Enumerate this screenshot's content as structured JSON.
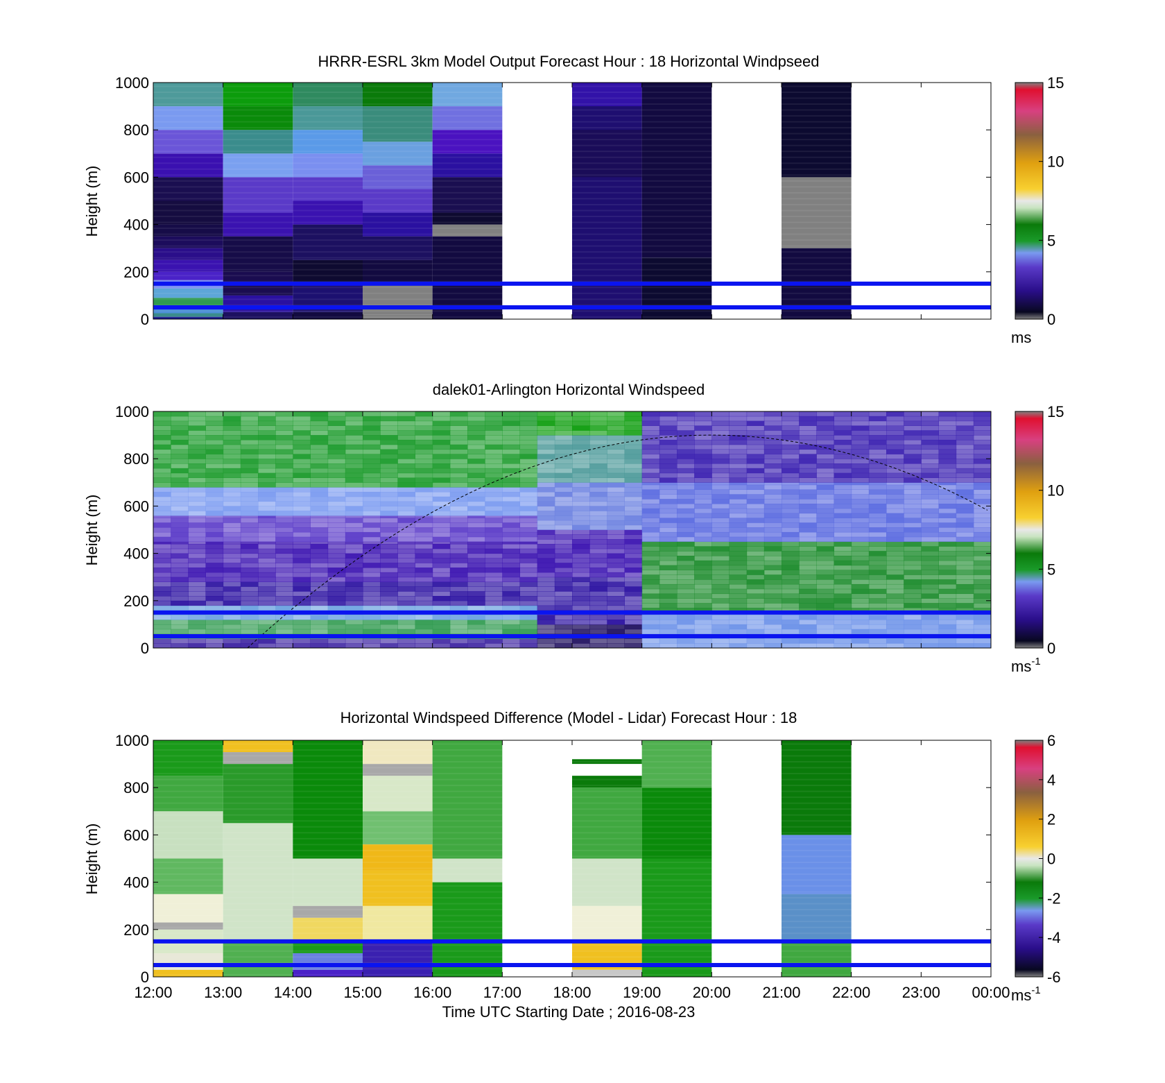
{
  "chart_data": [
    {
      "type": "heatmap",
      "title": "HRRR-ESRL 3km Model Output   Forecast Hour : 18 Horizontal Windpseed",
      "ylabel": "Height (m)",
      "ylim": [
        0,
        1000
      ],
      "yticks": [
        "0",
        "200",
        "400",
        "600",
        "800",
        "1000"
      ],
      "x_range_hours": [
        12,
        24
      ],
      "colorbar": {
        "range": [
          0,
          15
        ],
        "ticks": [
          "0",
          "5",
          "10",
          "15"
        ],
        "unit": "ms",
        "unit_exp": ""
      },
      "reference_lines_m": [
        50,
        150
      ],
      "columns": [
        {
          "t_start": 12,
          "t_end": 13,
          "cells": [
            [
              0,
              10,
              "#1a1a8c"
            ],
            [
              10,
              25,
              "#3a8c8c"
            ],
            [
              25,
              50,
              "#4b8fd6"
            ],
            [
              50,
              90,
              "#2f9a4f"
            ],
            [
              90,
              130,
              "#5da6d8"
            ],
            [
              130,
              165,
              "#7a8ff0"
            ],
            [
              165,
              200,
              "#4a22c8"
            ],
            [
              200,
              250,
              "#3a12b0"
            ],
            [
              250,
              300,
              "#2a0e8a"
            ],
            [
              300,
              350,
              "#1c0c5c"
            ],
            [
              350,
              400,
              "#160c48"
            ],
            [
              400,
              500,
              "#150c40"
            ],
            [
              500,
              600,
              "#1a0e50"
            ],
            [
              600,
              700,
              "#3a10b0"
            ],
            [
              700,
              800,
              "#6a55d8"
            ],
            [
              800,
              900,
              "#7a9af0"
            ],
            [
              900,
              1000,
              "#4e9a9a"
            ]
          ]
        },
        {
          "t_start": 13,
          "t_end": 14,
          "cells": [
            [
              0,
              30,
              "#1c1060"
            ],
            [
              30,
              100,
              "#2a10a0"
            ],
            [
              100,
              200,
              "#1a0c50"
            ],
            [
              200,
              350,
              "#160c48"
            ],
            [
              350,
              450,
              "#3a12b0"
            ],
            [
              450,
              600,
              "#5a3ac8"
            ],
            [
              600,
              700,
              "#7aa0f0"
            ],
            [
              700,
              800,
              "#3a8c8c"
            ],
            [
              800,
              900,
              "#0a8a0a"
            ],
            [
              900,
              1000,
              "#0c9c0c"
            ]
          ]
        },
        {
          "t_start": 14,
          "t_end": 15,
          "cells": [
            [
              0,
              30,
              "#120a40"
            ],
            [
              30,
              150,
              "#1c1070"
            ],
            [
              150,
              250,
              "#0e0a30"
            ],
            [
              250,
              400,
              "#1c1060"
            ],
            [
              400,
              500,
              "#3a12b0"
            ],
            [
              500,
              600,
              "#5a3ac8"
            ],
            [
              600,
              700,
              "#7a8ff0"
            ],
            [
              700,
              800,
              "#5a9ae8"
            ],
            [
              800,
              900,
              "#4a9898"
            ],
            [
              900,
              1000,
              "#2f8a5f"
            ]
          ]
        },
        {
          "t_start": 15,
          "t_end": 16,
          "cells": [
            [
              0,
              20,
              "#808080"
            ],
            [
              20,
              150,
              "#808080"
            ],
            [
              150,
              250,
              "#120a40"
            ],
            [
              250,
              350,
              "#1c1060"
            ],
            [
              350,
              450,
              "#2a10a0"
            ],
            [
              450,
              550,
              "#5a3ac8"
            ],
            [
              550,
              650,
              "#6a60d8"
            ],
            [
              650,
              750,
              "#6aa0e0"
            ],
            [
              750,
              900,
              "#3a8c7c"
            ],
            [
              900,
              1000,
              "#0a7a0a"
            ]
          ]
        },
        {
          "t_start": 16,
          "t_end": 17,
          "cells": [
            [
              0,
              350,
              "#120a40"
            ],
            [
              350,
              400,
              "#808080"
            ],
            [
              400,
              450,
              "#0e0a30"
            ],
            [
              450,
              600,
              "#1a0e50"
            ],
            [
              600,
              700,
              "#2a10a0"
            ],
            [
              700,
              800,
              "#4a12c0"
            ],
            [
              800,
              900,
              "#7070e0"
            ],
            [
              900,
              1000,
              "#70a8e0"
            ]
          ]
        },
        {
          "t_start": 18,
          "t_end": 19,
          "cells": [
            [
              0,
              1000,
              "#1e0e70"
            ],
            [
              900,
              1000,
              "#3212a8"
            ],
            [
              600,
              800,
              "#1a0c58"
            ]
          ]
        },
        {
          "t_start": 19,
          "t_end": 20,
          "cells": [
            [
              0,
              260,
              "#0c0a30"
            ],
            [
              260,
              1000,
              "#120a40"
            ]
          ]
        },
        {
          "t_start": 21,
          "t_end": 22,
          "cells": [
            [
              0,
              300,
              "#120a40"
            ],
            [
              300,
              600,
              "#808080"
            ],
            [
              600,
              1000,
              "#0c0a30"
            ]
          ]
        }
      ]
    },
    {
      "type": "heatmap",
      "title": "dalek01-Arlington  Horizontal Windspeed",
      "ylabel": "Height (m)",
      "ylim": [
        0,
        1000
      ],
      "yticks": [
        "0",
        "200",
        "400",
        "600",
        "800",
        "1000"
      ],
      "x_range_hours": [
        12,
        24
      ],
      "colorbar": {
        "range": [
          0,
          15
        ],
        "ticks": [
          "0",
          "5",
          "10",
          "15"
        ],
        "unit": "ms",
        "unit_exp": "-1"
      },
      "reference_lines_m": [
        50,
        150
      ],
      "overlay_curve": {
        "style": "dashed",
        "peak_time_hour": 20,
        "peak_height_m": 900,
        "zero_time_hour": 13.35,
        "end_height_m": 540
      },
      "time_step_hours": 0.25,
      "bands": [
        {
          "t_start": 12,
          "t_end": 17.5,
          "layers": [
            [
              0,
              40,
              "#3a20a0"
            ],
            [
              40,
              120,
              "#2f9a4f"
            ],
            [
              120,
              180,
              "#6aa0e0"
            ],
            [
              180,
              280,
              "#2a10a0"
            ],
            [
              280,
              450,
              "#3a12b0"
            ],
            [
              450,
              560,
              "#5a3ac8"
            ],
            [
              560,
              680,
              "#7a9af0"
            ],
            [
              680,
              1000,
              "#1a9a2a"
            ]
          ]
        },
        {
          "t_start": 17.5,
          "t_end": 19,
          "layers": [
            [
              0,
              100,
              "#1c0c5c"
            ],
            [
              100,
              300,
              "#2a10a0"
            ],
            [
              300,
              500,
              "#3a12b0"
            ],
            [
              500,
              700,
              "#6a80e0"
            ],
            [
              700,
              900,
              "#4a9898"
            ],
            [
              900,
              1000,
              "#0c9c0c"
            ]
          ]
        },
        {
          "t_start": 19,
          "t_end": 24,
          "layers": [
            [
              0,
              150,
              "#6a90e8"
            ],
            [
              150,
              450,
              "#1a8a2a"
            ],
            [
              450,
              700,
              "#5a6ae0"
            ],
            [
              700,
              1000,
              "#3a20b0"
            ]
          ]
        }
      ]
    },
    {
      "type": "heatmap",
      "title": "Horizontal Windspeed Difference (Model - Lidar) Forecast Hour : 18",
      "ylabel": "Height (m)",
      "xlabel": "Time UTC  Starting Date ; 2016-08-23",
      "ylim": [
        0,
        1000
      ],
      "yticks": [
        "0",
        "200",
        "400",
        "600",
        "800",
        "1000"
      ],
      "xticks": [
        "12:00",
        "13:00",
        "14:00",
        "15:00",
        "16:00",
        "17:00",
        "18:00",
        "19:00",
        "20:00",
        "21:00",
        "22:00",
        "23:00",
        "00:00"
      ],
      "x_range_hours": [
        12,
        24
      ],
      "colorbar": {
        "range": [
          -6,
          6
        ],
        "ticks": [
          "-6",
          "-4",
          "-2",
          "0",
          "2",
          "4",
          "6"
        ],
        "unit": "ms",
        "unit_exp": "-1"
      },
      "reference_lines_m": [
        50,
        150
      ],
      "columns": [
        {
          "t_start": 12,
          "t_end": 13,
          "cells": [
            [
              0,
              30,
              "#f0c020"
            ],
            [
              30,
              100,
              "#e8e8d8"
            ],
            [
              100,
              200,
              "#d8e8c8"
            ],
            [
              200,
              230,
              "#a8a8a8"
            ],
            [
              230,
              350,
              "#f0f0d8"
            ],
            [
              350,
              500,
              "#60b860"
            ],
            [
              500,
              700,
              "#c8e0c0"
            ],
            [
              700,
              850,
              "#40a840"
            ],
            [
              850,
              1000,
              "#1a9a1a"
            ]
          ]
        },
        {
          "t_start": 13,
          "t_end": 14,
          "cells": [
            [
              0,
              150,
              "#50b050"
            ],
            [
              150,
              650,
              "#d0e4c8"
            ],
            [
              650,
              900,
              "#2a9a2a"
            ],
            [
              900,
              950,
              "#a8a8a8"
            ],
            [
              950,
              1000,
              "#f0c020"
            ]
          ]
        },
        {
          "t_start": 14,
          "t_end": 15,
          "cells": [
            [
              0,
              30,
              "#4a22c8"
            ],
            [
              30,
              100,
              "#6a80e0"
            ],
            [
              100,
              150,
              "#1a9a1a"
            ],
            [
              150,
              250,
              "#f0d860"
            ],
            [
              250,
              300,
              "#a8a8a8"
            ],
            [
              300,
              500,
              "#d0e4c8"
            ],
            [
              500,
              1000,
              "#0a8a0a"
            ]
          ]
        },
        {
          "t_start": 15,
          "t_end": 16,
          "cells": [
            [
              0,
              150,
              "#3a20b0"
            ],
            [
              150,
              300,
              "#f0e8a0"
            ],
            [
              300,
              450,
              "#f0c020"
            ],
            [
              450,
              560,
              "#f0b818"
            ],
            [
              560,
              700,
              "#70c070"
            ],
            [
              700,
              850,
              "#d8e8c8"
            ],
            [
              850,
              900,
              "#a8a8a8"
            ],
            [
              900,
              1000,
              "#f0e8c0"
            ]
          ]
        },
        {
          "t_start": 16,
          "t_end": 17,
          "cells": [
            [
              0,
              400,
              "#1a9a1a"
            ],
            [
              400,
              500,
              "#d0e4c8"
            ],
            [
              500,
              1000,
              "#40a840"
            ]
          ]
        },
        {
          "t_start": 18,
          "t_end": 19,
          "cells": [
            [
              0,
              30,
              "#c8c8c8"
            ],
            [
              30,
              150,
              "#f0c020"
            ],
            [
              150,
              300,
              "#f0f0d8"
            ],
            [
              300,
              500,
              "#d0e4c8"
            ],
            [
              500,
              800,
              "#40a840"
            ],
            [
              800,
              850,
              "#0a7a0a"
            ],
            [
              900,
              920,
              "#0a7a0a"
            ]
          ]
        },
        {
          "t_start": 19,
          "t_end": 20,
          "cells": [
            [
              0,
              500,
              "#1a9a1a"
            ],
            [
              500,
              800,
              "#0a8a0a"
            ],
            [
              800,
              1000,
              "#50b050"
            ]
          ]
        },
        {
          "t_start": 21,
          "t_end": 22,
          "cells": [
            [
              0,
              150,
              "#40a840"
            ],
            [
              150,
              350,
              "#5a90c8"
            ],
            [
              350,
              600,
              "#6a90e8"
            ],
            [
              600,
              1000,
              "#0a7a0a"
            ]
          ]
        }
      ]
    }
  ]
}
